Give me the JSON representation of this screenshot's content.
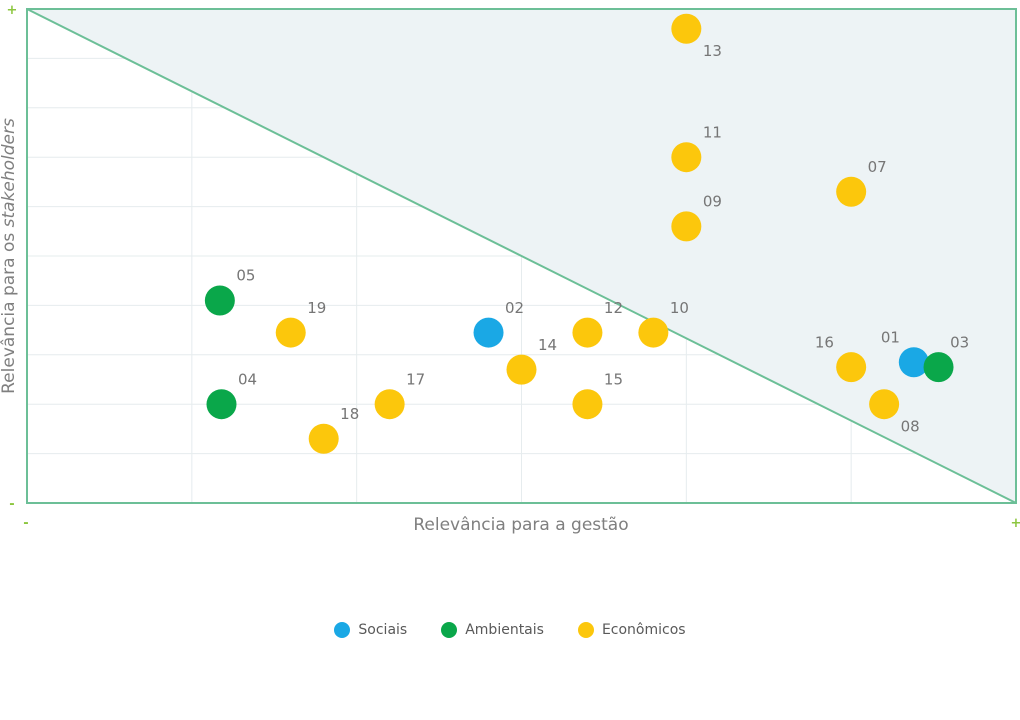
{
  "chart_data": {
    "type": "scatter",
    "xlabel": "Relevância para a gestão",
    "ylabel_prefix": "Relevância para os ",
    "ylabel_italic": "stakeholders",
    "axis_signs": {
      "y_max": "+",
      "y_min": "-",
      "x_min": "-",
      "x_max": "+"
    },
    "xlim": [
      0,
      6
    ],
    "ylim": [
      0,
      10
    ],
    "grid": true,
    "shaded_region": "above diagonal from top-left to bottom-right",
    "legend_position": "bottom-center",
    "legend": [
      {
        "key": "sociais",
        "label": "Sociais",
        "color": "#1aa8e5"
      },
      {
        "key": "ambientais",
        "label": "Ambientais",
        "color": "#0aa74a"
      },
      {
        "key": "economicos",
        "label": "Econômicos",
        "color": "#fcc70c"
      }
    ],
    "points": [
      {
        "id": "13",
        "x": 4.0,
        "y": 9.6,
        "cat": "economicos",
        "lx": 0.1,
        "ly": -0.55
      },
      {
        "id": "11",
        "x": 4.0,
        "y": 7.0,
        "cat": "economicos",
        "lx": 0.1,
        "ly": 0.4
      },
      {
        "id": "09",
        "x": 4.0,
        "y": 5.6,
        "cat": "economicos",
        "lx": 0.1,
        "ly": 0.4
      },
      {
        "id": "07",
        "x": 5.0,
        "y": 6.3,
        "cat": "economicos",
        "lx": 0.1,
        "ly": 0.4
      },
      {
        "id": "05",
        "x": 1.17,
        "y": 4.1,
        "cat": "ambientais",
        "lx": 0.1,
        "ly": 0.4
      },
      {
        "id": "19",
        "x": 1.6,
        "y": 3.45,
        "cat": "economicos",
        "lx": 0.1,
        "ly": 0.4
      },
      {
        "id": "02",
        "x": 2.8,
        "y": 3.45,
        "cat": "sociais",
        "lx": 0.1,
        "ly": 0.4
      },
      {
        "id": "12",
        "x": 3.4,
        "y": 3.45,
        "cat": "economicos",
        "lx": 0.1,
        "ly": 0.4
      },
      {
        "id": "10",
        "x": 3.8,
        "y": 3.45,
        "cat": "economicos",
        "lx": 0.1,
        "ly": 0.4
      },
      {
        "id": "14",
        "x": 3.0,
        "y": 2.7,
        "cat": "economicos",
        "lx": 0.1,
        "ly": 0.4
      },
      {
        "id": "16",
        "x": 5.0,
        "y": 2.75,
        "cat": "economicos",
        "lx": -0.22,
        "ly": 0.4
      },
      {
        "id": "01",
        "x": 5.38,
        "y": 2.85,
        "cat": "sociais",
        "lx": -0.2,
        "ly": 0.4
      },
      {
        "id": "03",
        "x": 5.53,
        "y": 2.75,
        "cat": "ambientais",
        "lx": 0.07,
        "ly": 0.4
      },
      {
        "id": "04",
        "x": 1.18,
        "y": 2.0,
        "cat": "ambientais",
        "lx": 0.1,
        "ly": 0.4
      },
      {
        "id": "17",
        "x": 2.2,
        "y": 2.0,
        "cat": "economicos",
        "lx": 0.1,
        "ly": 0.4
      },
      {
        "id": "15",
        "x": 3.4,
        "y": 2.0,
        "cat": "economicos",
        "lx": 0.1,
        "ly": 0.4
      },
      {
        "id": "08",
        "x": 5.2,
        "y": 2.0,
        "cat": "economicos",
        "lx": 0.1,
        "ly": -0.55
      },
      {
        "id": "18",
        "x": 1.8,
        "y": 1.3,
        "cat": "economicos",
        "lx": 0.1,
        "ly": 0.4
      }
    ]
  }
}
